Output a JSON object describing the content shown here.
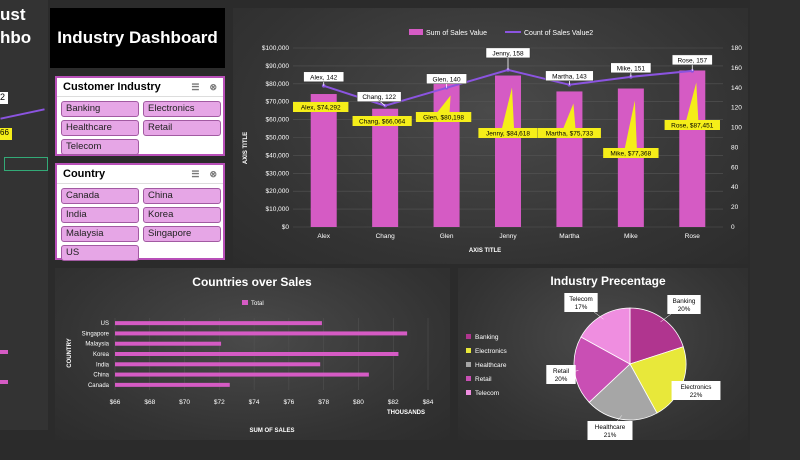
{
  "fragments": {
    "left_top": "ust",
    "left_mid": "hbo",
    "left_num": "2",
    "left_badge": "66"
  },
  "dashboard_title": "Industry Dashboard",
  "customer_slicer": {
    "title": "Customer Industry",
    "items": [
      "Banking",
      "Electronics",
      "Healthcare",
      "Retail",
      "Telecom"
    ]
  },
  "country_slicer": {
    "title": "Country",
    "items": [
      "Canada",
      "China",
      "India",
      "Korea",
      "Malaysia",
      "Singapore",
      "US"
    ]
  },
  "colors": {
    "bar": "#d55bc4",
    "line": "#8b54e0",
    "label_yellow": "#f5ee19"
  },
  "main_chart": {
    "type": "bar",
    "legend": [
      "Sum of Sales Value",
      "Count of Sales Value2"
    ],
    "xlabel": "AXIS TITLE",
    "ylabel": "AXIS TITLE",
    "y_ticks": [
      "$0",
      "$10,000",
      "$20,000",
      "$30,000",
      "$40,000",
      "$50,000",
      "$60,000",
      "$70,000",
      "$80,000",
      "$90,000",
      "$100,000"
    ],
    "y2_ticks": [
      "0",
      "20",
      "40",
      "60",
      "80",
      "100",
      "120",
      "140",
      "160",
      "180"
    ],
    "categories": [
      "Alex",
      "Chang",
      "Glen",
      "Jenny",
      "Martha",
      "Mike",
      "Rose"
    ],
    "sales": [
      74292,
      66064,
      80198,
      84618,
      75733,
      77368,
      87451
    ],
    "counts": [
      142,
      122,
      140,
      158,
      143,
      151,
      157
    ],
    "sales_labels": [
      "Alex, $74,292",
      "Chang, $66,064",
      "Glen, $80,198",
      "Jenny, $84,618",
      "Martha, $75,733",
      "Mike, $77,368",
      "Rose, $87,451"
    ],
    "count_labels": [
      "Alex, 142",
      "Chang, 122",
      "Glen, 140",
      "Jenny, 158",
      "Martha, 143",
      "Mike, 151",
      "Rose, 157"
    ],
    "ylim": [
      0,
      100000
    ],
    "y2lim": [
      0,
      180
    ]
  },
  "countries_chart": {
    "type": "bar",
    "title": "Countries over Sales",
    "legend": "Total",
    "xlabel": "SUM OF SALES",
    "ylabel": "COUNTRY",
    "units": "THOUSANDS",
    "categories": [
      "US",
      "Singapore",
      "Malaysia",
      "Korea",
      "India",
      "China",
      "Canada"
    ],
    "values": [
      77.9,
      82.8,
      72.1,
      82.3,
      77.8,
      80.6,
      72.6
    ],
    "x_ticks": [
      "$66",
      "$68",
      "$70",
      "$72",
      "$74",
      "$76",
      "$78",
      "$80",
      "$82",
      "$84"
    ],
    "xlim": [
      66,
      84
    ]
  },
  "industry_chart": {
    "type": "pie",
    "title": "Industry Precentage",
    "legend": [
      "Banking",
      "Electronics",
      "Healthcare",
      "Retail",
      "Telecom"
    ],
    "values": [
      20,
      22,
      21,
      20,
      17
    ],
    "labels": [
      "Banking 20%",
      "Electronics 22%",
      "Healthcare 21%",
      "Retail 20%",
      "Telecom 17%"
    ],
    "colors": [
      "#b0358f",
      "#e8e83a",
      "#a6a6a6",
      "#c94fb4",
      "#ef8ee0"
    ]
  }
}
